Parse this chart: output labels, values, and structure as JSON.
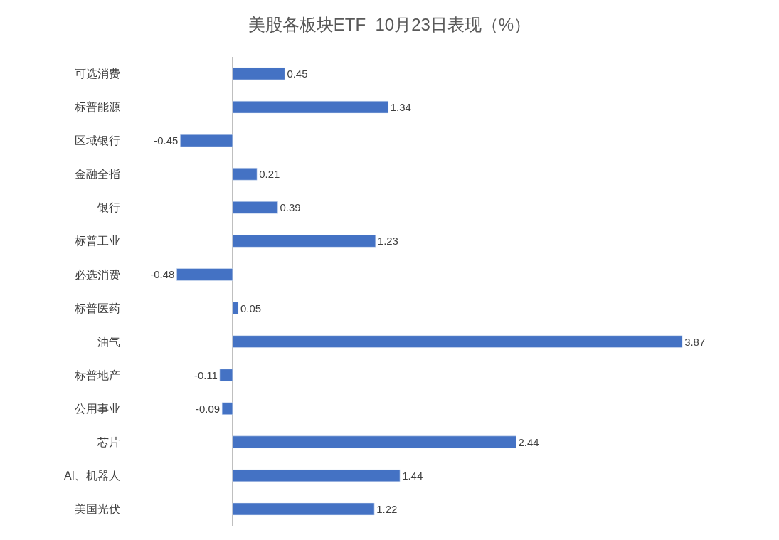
{
  "chart_data": {
    "type": "bar",
    "orientation": "horizontal",
    "title": "美股各板块ETF  10月23日表现（%）",
    "categories": [
      "可选消费",
      "标普能源",
      "区域银行",
      "金融全指",
      "银行",
      "标普工业",
      "必选消费",
      "标普医药",
      "油气",
      "标普地产",
      "公用事业",
      "芯片",
      "AI、机器人",
      "美国光伏"
    ],
    "values": [
      0.45,
      1.34,
      -0.45,
      0.21,
      0.39,
      1.23,
      -0.48,
      0.05,
      3.87,
      -0.11,
      -0.09,
      2.44,
      1.44,
      1.22
    ],
    "color": "#4472c4",
    "data_labels": true,
    "tick_labels": "y"
  }
}
